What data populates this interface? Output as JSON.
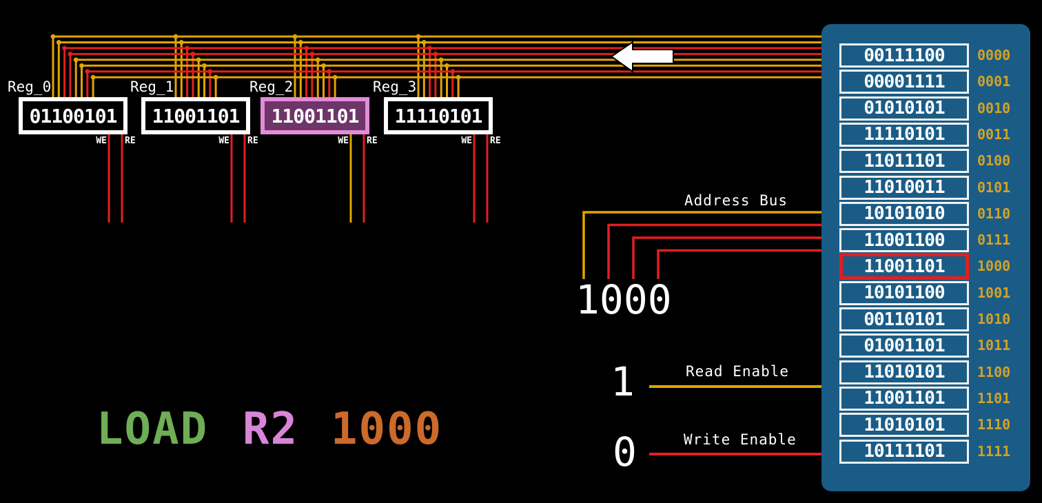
{
  "instruction": {
    "parts": [
      {
        "text": "LOAD",
        "color": "#70ad57"
      },
      {
        "text": "R2",
        "color": "#d885d8"
      },
      {
        "text": "1000",
        "color": "#cb6a2a"
      }
    ]
  },
  "registers": {
    "we_label": "WE",
    "re_label": "RE",
    "items": [
      {
        "label": "Reg_0",
        "value": "01100101",
        "highlighted": false,
        "we": "0",
        "re": "0"
      },
      {
        "label": "Reg_1",
        "value": "11001101",
        "highlighted": false,
        "we": "0",
        "re": "0"
      },
      {
        "label": "Reg_2",
        "value": "11001101",
        "highlighted": true,
        "we": "1",
        "re": "0"
      },
      {
        "label": "Reg_3",
        "value": "11110101",
        "highlighted": false,
        "we": "0",
        "re": "0"
      }
    ]
  },
  "data_bus": {
    "bits": "11001101",
    "flow_direction": "left"
  },
  "address_bus": {
    "label": "Address Bus",
    "value": "1000"
  },
  "read_enable": {
    "label": "Read Enable",
    "value": "1"
  },
  "write_enable": {
    "label": "Write Enable",
    "value": "0"
  },
  "memory": {
    "rows": [
      {
        "value": "00111100",
        "address": "0000",
        "highlighted": false
      },
      {
        "value": "00001111",
        "address": "0001",
        "highlighted": false
      },
      {
        "value": "01010101",
        "address": "0010",
        "highlighted": false
      },
      {
        "value": "11110101",
        "address": "0011",
        "highlighted": false
      },
      {
        "value": "11011101",
        "address": "0100",
        "highlighted": false
      },
      {
        "value": "11010011",
        "address": "0101",
        "highlighted": false
      },
      {
        "value": "10101010",
        "address": "0110",
        "highlighted": false
      },
      {
        "value": "11001100",
        "address": "0111",
        "highlighted": false
      },
      {
        "value": "11001101",
        "address": "1000",
        "highlighted": true
      },
      {
        "value": "10101100",
        "address": "1001",
        "highlighted": false
      },
      {
        "value": "00110101",
        "address": "1010",
        "highlighted": false
      },
      {
        "value": "01001101",
        "address": "1011",
        "highlighted": false
      },
      {
        "value": "11010101",
        "address": "1100",
        "highlighted": false
      },
      {
        "value": "11001101",
        "address": "1101",
        "highlighted": false
      },
      {
        "value": "11010101",
        "address": "1110",
        "highlighted": false
      },
      {
        "value": "10111101",
        "address": "1111",
        "highlighted": false
      }
    ]
  },
  "colors": {
    "background": "#000000",
    "wire_high": "#e2a400",
    "wire_low": "#e41e1e",
    "memory_bg": "#1a5c86",
    "cell_border": "#f2f2f2",
    "cell_text": "#ffffff",
    "address_text": "#d4a125",
    "highlight_cell_border": "#e41e1e",
    "register_border": "#ffffff",
    "register_highlight_border": "#e48bd8",
    "register_highlight_bg": "#6e3569",
    "arrow_fill": "#ffffff"
  }
}
